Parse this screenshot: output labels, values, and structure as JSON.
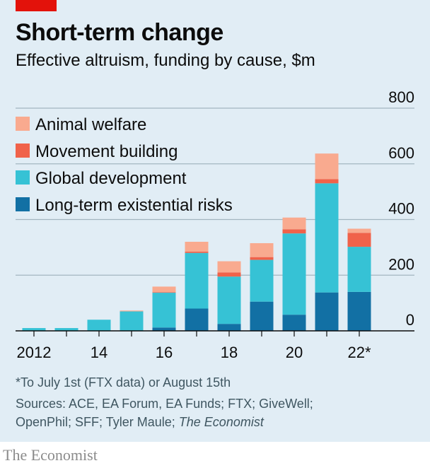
{
  "header": {
    "title": "Short-term change",
    "subtitle": "Effective altruism, funding by cause, $m"
  },
  "footnote": "*To July 1st (FTX data) or August 15th",
  "sources": {
    "text": "Sources: ACE, EA Forum, EA Funds; FTX; GiveWell; OpenPhil; SFF; Tyler Maule;",
    "italic": "The Economist"
  },
  "brand": "The Economist",
  "colors": {
    "background": "#e1edf5",
    "brand_red": "#e3120b",
    "animal_welfare": "#f9aa8f",
    "movement_building": "#f0624a",
    "global_development": "#36c2d5",
    "long_term_risks": "#1270a4"
  },
  "chart_data": {
    "type": "bar",
    "stacked": true,
    "categories": [
      "2012",
      "2013",
      "2014",
      "2015",
      "2016",
      "2017",
      "2018",
      "2019",
      "2020",
      "2021",
      "2022*"
    ],
    "x_tick_labels": [
      "2012",
      "",
      "14",
      "",
      "16",
      "",
      "18",
      "",
      "20",
      "",
      "22*"
    ],
    "series": [
      {
        "name": "Long-term existential risks",
        "color": "#1270a4",
        "values": [
          0,
          0,
          0,
          0,
          12,
          80,
          25,
          105,
          58,
          138,
          140
        ]
      },
      {
        "name": "Global development",
        "color": "#36c2d5",
        "values": [
          10,
          10,
          40,
          70,
          125,
          200,
          170,
          150,
          292,
          392,
          162
        ]
      },
      {
        "name": "Movement building",
        "color": "#f0624a",
        "values": [
          0,
          0,
          0,
          0,
          2,
          5,
          15,
          10,
          15,
          15,
          50
        ]
      },
      {
        "name": "Animal welfare",
        "color": "#f9aa8f",
        "values": [
          0,
          0,
          0,
          3,
          20,
          35,
          40,
          50,
          42,
          92,
          15
        ]
      }
    ],
    "y_ticks": [
      "0",
      "200",
      "400",
      "600",
      "800"
    ],
    "ylim": [
      0,
      800
    ],
    "legend_position": "top-left",
    "grid": true
  }
}
